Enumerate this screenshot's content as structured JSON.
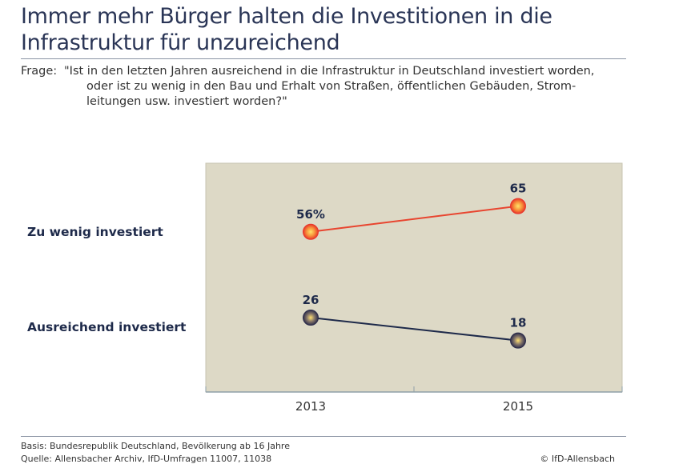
{
  "title_lines": [
    "Immer mehr Bürger halten die Investitionen in die",
    "Infrastruktur für unzureichend"
  ],
  "question": {
    "label": "Frage:",
    "lines": [
      "\"Ist in den letzten Jahren ausreichend in die Infrastruktur in Deutschland investiert worden,",
      "oder ist zu wenig in den Bau und Erhalt von Straßen, öffentlichen Gebäuden, Strom-",
      "leitungen usw. investiert worden?\""
    ]
  },
  "chart_data": {
    "type": "line",
    "categories": [
      "2013",
      "2015"
    ],
    "ylim": [
      0,
      80
    ],
    "grid": false,
    "background": "#ddd9c6",
    "series": [
      {
        "name": "Zu wenig investiert",
        "values": [
          56,
          65
        ],
        "labels": [
          "56%",
          "65"
        ],
        "color": "#e8452f"
      },
      {
        "name": "Ausreichend investiert",
        "values": [
          26,
          18
        ],
        "labels": [
          "26",
          "18"
        ],
        "color": "#1e2a4a"
      }
    ]
  },
  "footer": {
    "basis": "Basis: Bundesrepublik Deutschland, Bevölkerung ab 16 Jahre",
    "source": "Quelle: Allensbacher Archiv, IfD-Umfragen 11007, 11038",
    "copyright": "© IfD-Allensbach"
  }
}
